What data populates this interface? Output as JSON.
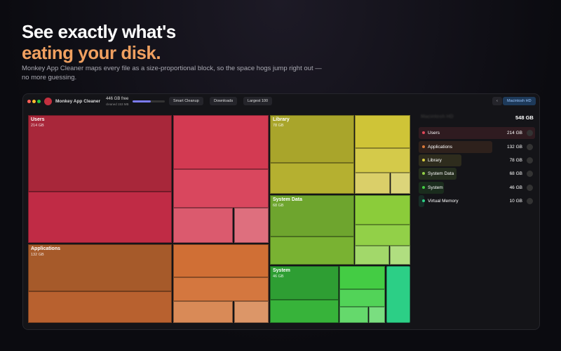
{
  "hero": {
    "title_line1": "See exactly what's",
    "title_line2": "eating your disk.",
    "subtitle": "Monkey App Cleaner maps every file as a size-proportional block, so the space hogs jump right out — no more guessing."
  },
  "toolbar": {
    "app_name": "Monkey App Cleaner",
    "free": "446 GB free",
    "cleaned": "cleaned 153 MB",
    "buttons": [
      "Smart Cleanup",
      "Downloads",
      "Largest 100"
    ],
    "back": "‹",
    "disk": "Macintosh HD"
  },
  "treemap": {
    "blocks": [
      {
        "label": "Users",
        "size": "214 GB"
      },
      {
        "label": "Applications",
        "size": "132 GB"
      },
      {
        "label": "Library",
        "size": "78 GB"
      },
      {
        "label": "System Data",
        "size": "68 GB"
      },
      {
        "label": "System",
        "size": "46 GB"
      }
    ]
  },
  "sidebar": {
    "title": "Macintosh HD",
    "total": "548 GB",
    "items": [
      {
        "label": "Users",
        "size": "214 GB"
      },
      {
        "label": "Applications",
        "size": "132 GB"
      },
      {
        "label": "Library",
        "size": "78 GB"
      },
      {
        "label": "System Data",
        "size": "68 GB"
      },
      {
        "label": "System",
        "size": "46 GB"
      },
      {
        "label": "Virtual Memory",
        "size": "10 GB"
      }
    ]
  }
}
